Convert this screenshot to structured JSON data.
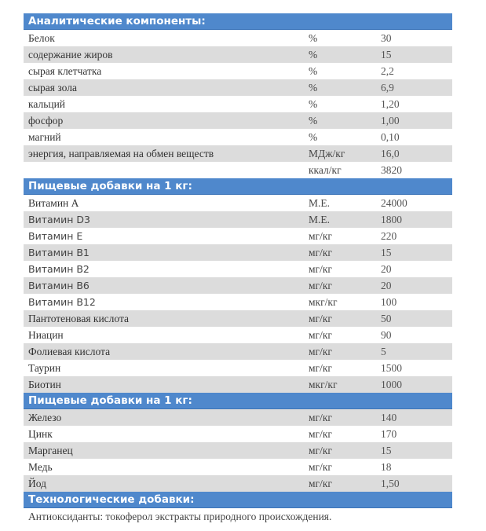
{
  "sections": [
    {
      "title": "Аналитические компоненты:",
      "rows": [
        {
          "name": "Белок",
          "unit": "%",
          "value": "30"
        },
        {
          "name": "содержание жиров",
          "unit": "%",
          "value": "15"
        },
        {
          "name": "сырая клетчатка",
          "unit": "%",
          "value": "2,2"
        },
        {
          "name": "сырая зола",
          "unit": "%",
          "value": "6,9"
        },
        {
          "name": "кальций",
          "unit": "%",
          "value": "1,20"
        },
        {
          "name": "фосфор",
          "unit": "%",
          "value": "1,00"
        },
        {
          "name": "магний",
          "unit": "%",
          "value": "0,10"
        },
        {
          "name": "энергия, направляемая на обмен веществ",
          "unit": "МДж/кг",
          "value": "16,0"
        },
        {
          "name": "",
          "unit": "ккал/кг",
          "value": "3820"
        }
      ]
    },
    {
      "title": "Пищевые добавки на 1 кг:",
      "rows": [
        {
          "name": "Витамин А",
          "unit": "М.Е.",
          "value": "24000"
        },
        {
          "name": "Витамин D3",
          "unit": "М.Е.",
          "value": "1800"
        },
        {
          "name": "Витамин Е",
          "unit": "мг/кг",
          "value": "220"
        },
        {
          "name": "Витамин В1",
          "unit": "мг/кг",
          "value": "15"
        },
        {
          "name": "Витамин В2",
          "unit": "мг/кг",
          "value": "20"
        },
        {
          "name": "Витамин В6",
          "unit": "мг/кг",
          "value": "20"
        },
        {
          "name": "Витамин В12",
          "unit": "мкг/кг",
          "value": "100"
        },
        {
          "name": "Пантотеновая кислота",
          "unit": "мг/кг",
          "value": "50"
        },
        {
          "name": "Ниацин",
          "unit": "мг/кг",
          "value": "90"
        },
        {
          "name": "Фолиевая кислота",
          "unit": "мг/кг",
          "value": "5"
        },
        {
          "name": "Таурин",
          "unit": "мг/кг",
          "value": "1500"
        },
        {
          "name": "Биотин",
          "unit": "мкг/кг",
          "value": "1000"
        }
      ]
    },
    {
      "title": "Пищевые добавки на 1 кг:",
      "rows": [
        {
          "name": "Железо",
          "unit": "мг/кг",
          "value": "140"
        },
        {
          "name": "Цинк",
          "unit": "мг/кг",
          "value": "170"
        },
        {
          "name": "Марганец",
          "unit": "мг/кг",
          "value": "15"
        },
        {
          "name": "Медь",
          "unit": "мг/кг",
          "value": "18"
        },
        {
          "name": "Йод",
          "unit": "мг/кг",
          "value": "1,50"
        }
      ]
    },
    {
      "title": "Технологические добавки:",
      "text": "Антиоксиданты: токоферол экстракты природного происхождения."
    }
  ],
  "colors": {
    "header": "#4f88cc",
    "stripe": "#dcdcdc"
  }
}
